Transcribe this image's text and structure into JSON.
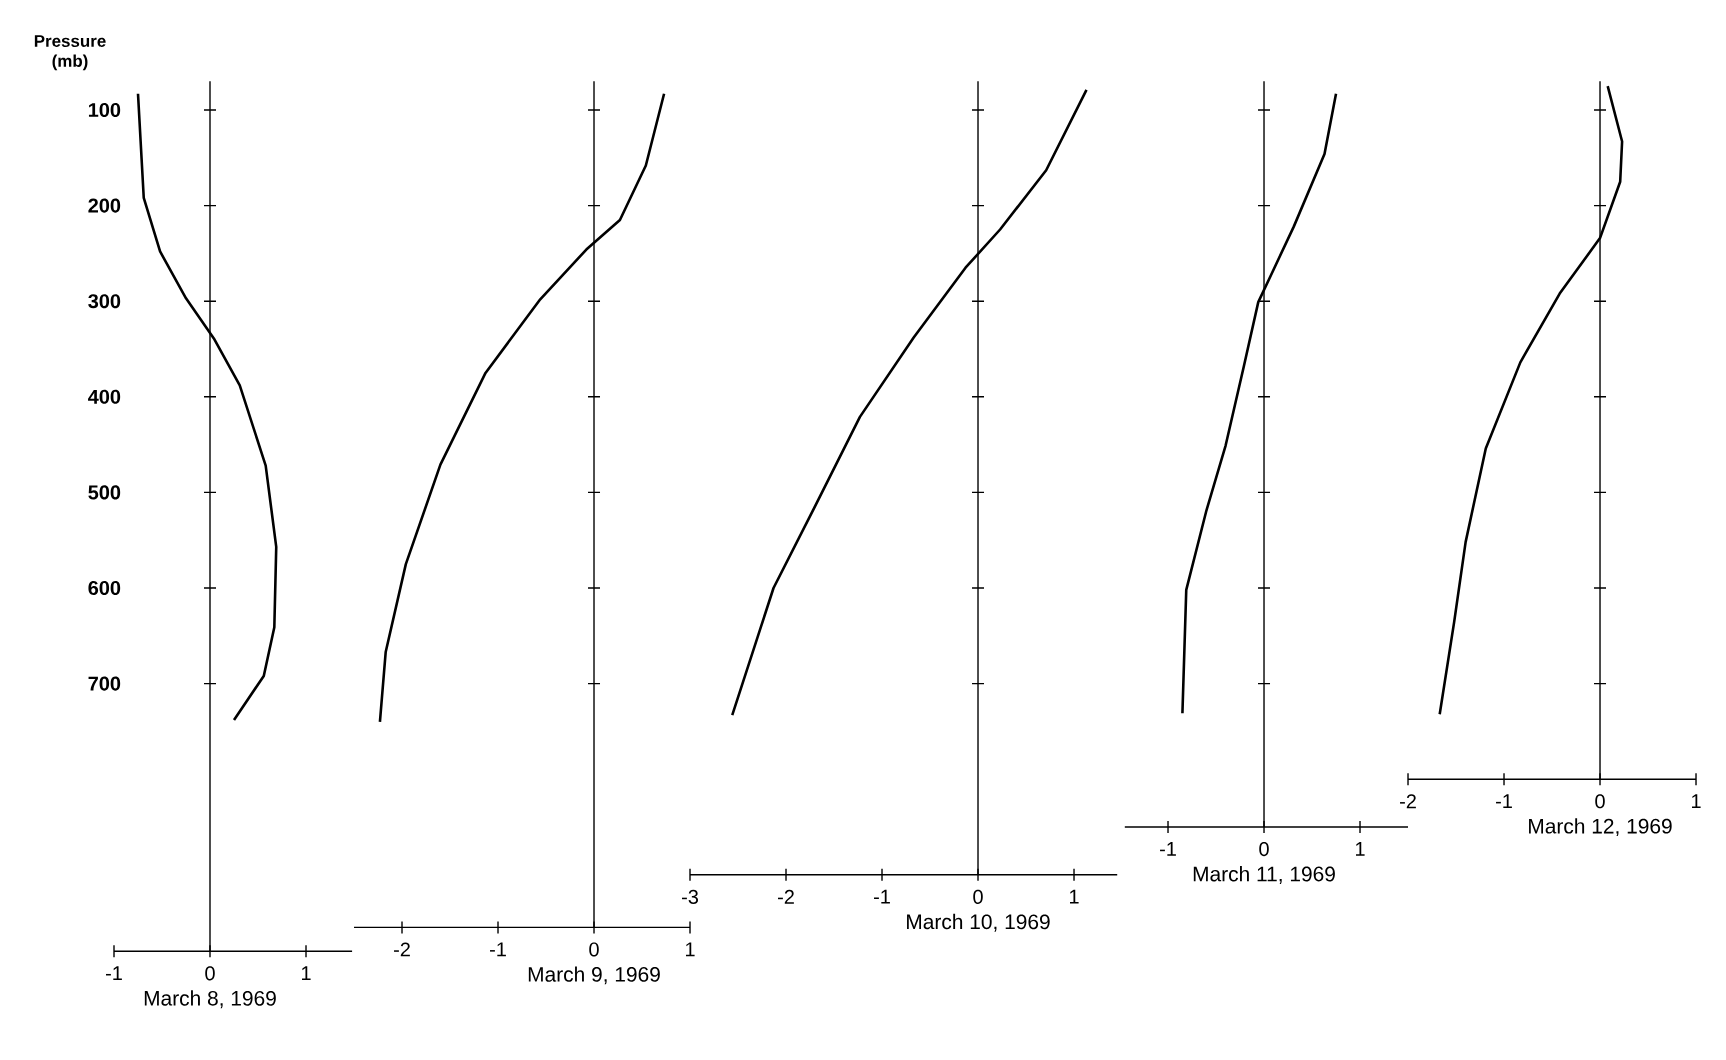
{
  "chart_data": [
    {
      "type": "line",
      "ylabel": "Pressure (mb)",
      "xlabel": "March 8, 1969",
      "xlim": [
        -1,
        1.48
      ],
      "xticks": [
        -1,
        0,
        1
      ],
      "ylim": [
        980,
        70
      ],
      "yticks": [
        100,
        200,
        300,
        400,
        500,
        600,
        700
      ],
      "series": [
        {
          "color": "#000000",
          "x": [
            -0.75,
            -0.69,
            -0.52,
            -0.25,
            0.04,
            0.31,
            0.58,
            0.69,
            0.67,
            0.56,
            0.25
          ],
          "values": [
            83,
            192,
            248,
            297,
            339,
            388,
            472,
            557,
            641,
            692,
            738
          ]
        }
      ]
    },
    {
      "type": "line",
      "xlabel": "March 9, 1969",
      "xlim": [
        -2.5,
        1
      ],
      "xticks": [
        -2,
        -1,
        0,
        1
      ],
      "ylim": [
        955,
        70
      ],
      "tick_labels": "x",
      "yticks": [
        100,
        200,
        300,
        400,
        500,
        600,
        700
      ],
      "series": [
        {
          "color": "#000000",
          "x": [
            0.73,
            0.54,
            0.27,
            -0.08,
            -0.56,
            -1.13,
            -1.6,
            -1.96,
            -2.17,
            -2.23
          ],
          "values": [
            83,
            158,
            215,
            246,
            298,
            375,
            471,
            575,
            667,
            740
          ]
        }
      ]
    },
    {
      "type": "line",
      "xlabel": "March 10, 1969",
      "xlim": [
        -3,
        1.45
      ],
      "xticks": [
        -3,
        -2,
        -1,
        0,
        1
      ],
      "ylim": [
        900,
        70
      ],
      "tick_labels": "x",
      "yticks": [
        100,
        200,
        300,
        400,
        500,
        600,
        700
      ],
      "series": [
        {
          "color": "#000000",
          "x": [
            1.13,
            0.71,
            0.23,
            -0.13,
            -0.67,
            -1.23,
            -1.71,
            -2.13,
            -2.56
          ],
          "values": [
            79,
            163,
            225,
            265,
            338,
            421,
            517,
            600,
            733
          ]
        }
      ]
    },
    {
      "type": "line",
      "xlabel": "March 11, 1969",
      "xlim": [
        -1.45,
        1.5
      ],
      "xticks": [
        -1,
        0,
        1
      ],
      "ylim": [
        850,
        70
      ],
      "tick_labels": "x",
      "yticks": [
        100,
        200,
        300,
        400,
        500,
        600,
        700
      ],
      "series": [
        {
          "color": "#000000",
          "x": [
            0.75,
            0.63,
            0.31,
            -0.06,
            -0.21,
            -0.4,
            -0.6,
            -0.81,
            -0.85
          ],
          "values": [
            83,
            146,
            222,
            301,
            368,
            451,
            519,
            602,
            731
          ]
        }
      ]
    },
    {
      "type": "line",
      "xlabel": "March 12, 1969",
      "xlim": [
        -2,
        1
      ],
      "xticks": [
        -2,
        -1,
        0,
        1
      ],
      "ylim": [
        800,
        70
      ],
      "tick_labels": "x",
      "yticks": [
        100,
        200,
        300,
        400,
        500,
        600,
        700
      ],
      "series": [
        {
          "color": "#000000",
          "x": [
            0.08,
            0.23,
            0.21,
            0.0,
            -0.42,
            -0.83,
            -1.19,
            -1.4,
            -1.52,
            -1.67
          ],
          "values": [
            75,
            133,
            175,
            234,
            292,
            364,
            454,
            552,
            636,
            732
          ]
        }
      ]
    }
  ]
}
